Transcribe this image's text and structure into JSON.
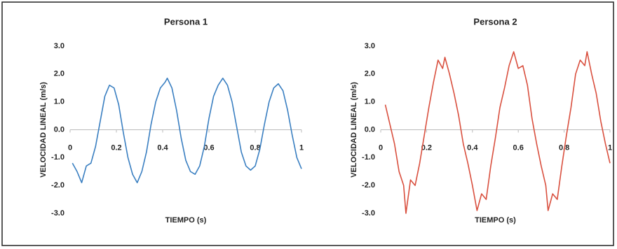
{
  "chart_data": [
    {
      "type": "line",
      "title": "Persona 1",
      "x_label": "TIEMPO (s)",
      "y_label": "VELOCIDAD LINEAL (m/s)",
      "xlim": [
        0,
        1
      ],
      "ylim": [
        -3,
        3
      ],
      "xticks": [
        0,
        0.2,
        0.4,
        0.6,
        0.8,
        1
      ],
      "yticks": [
        {
          "value": -3,
          "label": "-3.0"
        },
        {
          "value": -2,
          "label": "-2.0"
        },
        {
          "value": -1,
          "label": "-1.0"
        },
        {
          "value": 0,
          "label": "0.0"
        },
        {
          "value": 1,
          "label": "1.0"
        },
        {
          "value": 2,
          "label": "2.0"
        },
        {
          "value": 3,
          "label": "3.0"
        }
      ],
      "grid": false,
      "x": [
        0.01,
        0.03,
        0.05,
        0.07,
        0.09,
        0.11,
        0.13,
        0.15,
        0.17,
        0.19,
        0.21,
        0.23,
        0.25,
        0.27,
        0.29,
        0.31,
        0.33,
        0.35,
        0.37,
        0.39,
        0.41,
        0.42,
        0.44,
        0.46,
        0.48,
        0.5,
        0.52,
        0.54,
        0.56,
        0.58,
        0.6,
        0.62,
        0.64,
        0.66,
        0.68,
        0.7,
        0.72,
        0.74,
        0.76,
        0.78,
        0.8,
        0.82,
        0.84,
        0.86,
        0.88,
        0.9,
        0.92,
        0.94,
        0.96,
        0.98,
        1.0
      ],
      "series": [
        {
          "name": "Persona 1",
          "color": "#3a7fc1",
          "values": [
            -1.2,
            -1.5,
            -1.9,
            -1.3,
            -1.2,
            -0.6,
            0.3,
            1.2,
            1.6,
            1.5,
            0.9,
            -0.1,
            -1.0,
            -1.6,
            -1.9,
            -1.5,
            -0.8,
            0.2,
            1.0,
            1.5,
            1.7,
            1.85,
            1.5,
            0.7,
            -0.3,
            -1.1,
            -1.5,
            -1.6,
            -1.3,
            -0.6,
            0.4,
            1.2,
            1.6,
            1.85,
            1.6,
            1.0,
            0.1,
            -0.8,
            -1.3,
            -1.45,
            -1.3,
            -0.7,
            0.2,
            1.0,
            1.5,
            1.65,
            1.4,
            0.7,
            -0.2,
            -1.0,
            -1.4
          ]
        }
      ]
    },
    {
      "type": "line",
      "title": "Persona 2",
      "x_label": "TIEMPO (s)",
      "y_label": "VELOCIDAD LINEAL (m/s)",
      "xlim": [
        0,
        1
      ],
      "ylim": [
        -3,
        3
      ],
      "xticks": [
        0,
        0.2,
        0.4,
        0.6,
        0.8,
        1
      ],
      "yticks": [
        {
          "value": -3,
          "label": "-3.0"
        },
        {
          "value": -2,
          "label": "-2.0"
        },
        {
          "value": -1,
          "label": "-1.0"
        },
        {
          "value": 0,
          "label": "0.0"
        },
        {
          "value": 1,
          "label": "1.0"
        },
        {
          "value": 2,
          "label": "2.0"
        },
        {
          "value": 3,
          "label": "3.0"
        }
      ],
      "grid": false,
      "x": [
        0.02,
        0.04,
        0.06,
        0.08,
        0.1,
        0.11,
        0.13,
        0.15,
        0.17,
        0.19,
        0.21,
        0.23,
        0.25,
        0.27,
        0.28,
        0.3,
        0.32,
        0.34,
        0.36,
        0.38,
        0.4,
        0.42,
        0.44,
        0.46,
        0.48,
        0.5,
        0.52,
        0.54,
        0.56,
        0.58,
        0.6,
        0.62,
        0.64,
        0.66,
        0.68,
        0.7,
        0.72,
        0.73,
        0.75,
        0.77,
        0.79,
        0.81,
        0.83,
        0.85,
        0.87,
        0.89,
        0.9,
        0.92,
        0.94,
        0.96,
        0.98,
        1.0
      ],
      "series": [
        {
          "name": "Persona 2",
          "color": "#d9503f",
          "values": [
            0.9,
            0.2,
            -0.5,
            -1.5,
            -2.0,
            -3.0,
            -1.8,
            -2.0,
            -1.2,
            -0.2,
            0.8,
            1.7,
            2.5,
            2.2,
            2.6,
            2.0,
            1.3,
            0.5,
            -0.5,
            -1.2,
            -2.0,
            -2.9,
            -2.3,
            -2.5,
            -1.3,
            -0.3,
            0.8,
            1.5,
            2.3,
            2.8,
            2.2,
            2.3,
            1.6,
            0.4,
            -0.5,
            -1.3,
            -2.0,
            -2.9,
            -2.3,
            -2.5,
            -1.3,
            -0.2,
            0.8,
            2.0,
            2.5,
            2.3,
            2.8,
            2.0,
            1.3,
            0.3,
            -0.5,
            -1.2
          ]
        }
      ]
    }
  ]
}
